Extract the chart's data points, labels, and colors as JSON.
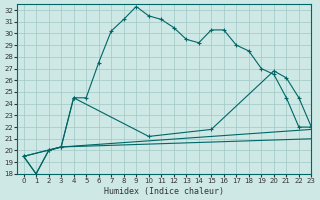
{
  "xlabel": "Humidex (Indice chaleur)",
  "background_color": "#cde8e5",
  "grid_color": "#a0c8c4",
  "line_color": "#006666",
  "xlim": [
    -0.5,
    23
  ],
  "ylim": [
    18,
    32.5
  ],
  "xticks": [
    0,
    1,
    2,
    3,
    4,
    5,
    6,
    7,
    8,
    9,
    10,
    11,
    12,
    13,
    14,
    15,
    16,
    17,
    18,
    19,
    20,
    21,
    22,
    23
  ],
  "yticks": [
    18,
    19,
    20,
    21,
    22,
    23,
    24,
    25,
    26,
    27,
    28,
    29,
    30,
    31,
    32
  ],
  "line1_x": [
    0,
    1,
    2,
    3,
    4,
    5,
    6,
    7,
    8,
    9,
    10,
    11,
    12,
    13,
    14,
    15,
    16,
    17,
    18,
    19,
    20,
    21,
    22,
    23
  ],
  "line1_y": [
    19.5,
    18.0,
    20.0,
    20.3,
    24.5,
    24.5,
    27.5,
    30.2,
    31.2,
    32.3,
    31.5,
    31.2,
    30.5,
    29.5,
    29.2,
    30.3,
    30.3,
    29.0,
    28.5,
    27.0,
    26.5,
    24.5,
    22.0,
    22.0
  ],
  "line2_x": [
    0,
    1,
    2,
    3,
    4,
    10,
    15,
    20,
    21,
    22,
    23
  ],
  "line2_y": [
    19.5,
    18.0,
    20.0,
    20.3,
    24.5,
    21.2,
    21.8,
    26.8,
    26.2,
    24.5,
    22.0
  ],
  "line3_x": [
    0,
    3,
    23
  ],
  "line3_y": [
    19.5,
    20.3,
    21.8
  ],
  "line4_x": [
    0,
    3,
    23
  ],
  "line4_y": [
    19.5,
    20.3,
    21.0
  ]
}
